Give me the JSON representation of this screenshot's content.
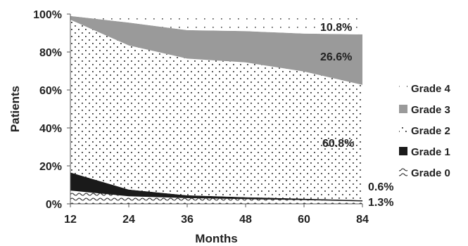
{
  "chart_data": {
    "type": "area",
    "stacked": true,
    "x": [
      12,
      24,
      36,
      48,
      60,
      84
    ],
    "xlabel": "Months",
    "ylabel": "Patients",
    "xlim": [
      12,
      84
    ],
    "ylim": [
      0,
      100
    ],
    "yticks": [
      "0%",
      "20%",
      "40%",
      "60%",
      "80%",
      "100%"
    ],
    "xticks": [
      "12",
      "24",
      "36",
      "48",
      "60",
      "84"
    ],
    "series": [
      {
        "name": "Grade 0",
        "values": [
          7,
          4,
          3,
          2.5,
          2,
          1.3
        ]
      },
      {
        "name": "Grade 1",
        "values": [
          9.5,
          3.5,
          1.5,
          1,
          0.7,
          0.6
        ]
      },
      {
        "name": "Grade 2",
        "values": [
          80.5,
          76,
          72,
          71,
          67,
          60.8
        ]
      },
      {
        "name": "Grade 3",
        "values": [
          2,
          12,
          15,
          16.5,
          20,
          26.6
        ]
      },
      {
        "name": "Grade 4",
        "values": [
          1,
          4.5,
          8.5,
          9,
          10.3,
          10.8
        ]
      }
    ],
    "data_labels": {
      "grade4": "10.8%",
      "grade3": "26.6%",
      "grade2": "60.8%",
      "grade1": "0.6%",
      "grade0": "1.3%"
    },
    "legend": {
      "position": "right",
      "entries": [
        "Grade 4",
        "Grade 3",
        "Grade 2",
        "Grade 1",
        "Grade 0"
      ]
    },
    "colors": {
      "grade3": "#9a9a9a",
      "grade1": "#1a1a1a",
      "text": "#222222"
    }
  }
}
